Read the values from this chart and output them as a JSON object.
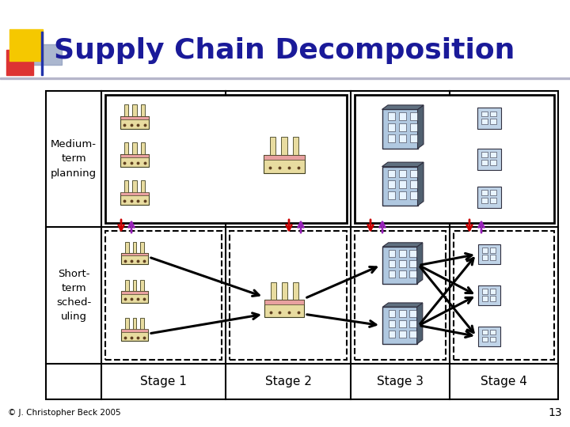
{
  "title": "Supply Chain Decomposition",
  "title_color": "#1a1a99",
  "title_fontsize": 26,
  "bg_color": "#ffffff",
  "row_labels": [
    "Medium-\nterm\nplanning",
    "Short-\nterm\nsched-\nuling"
  ],
  "col_labels": [
    "Stage 1",
    "Stage 2",
    "Stage 3",
    "Stage 4"
  ],
  "footer": "© J. Christopher Beck 2005",
  "slide_number": "13",
  "factory_body": "#e8dca0",
  "factory_chimney": "#d8cc90",
  "factory_roof": "#e8a0a0",
  "factory_outline": "#404020",
  "building_body": "#b0c8e0",
  "building_outline": "#303040",
  "building_window": "#e8f4ff",
  "arrow_red": "#cc0000",
  "arrow_purple": "#9922bb",
  "arrow_black": "#000000",
  "table_line": "#000000",
  "accent_yellow": "#f5c800",
  "accent_red": "#dd3333",
  "accent_blue": "#8899bb",
  "accent_darkblue": "#2233aa"
}
